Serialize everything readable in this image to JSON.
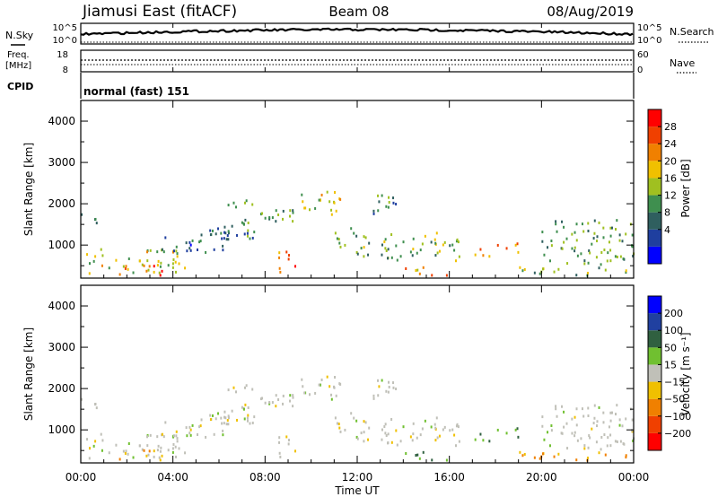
{
  "header": {
    "title": "Jiamusi East (fitACF)",
    "beam": "Beam 08",
    "date": "08/Aug/2019"
  },
  "noise_panel": {
    "left_label": "N.Sky",
    "right_label": "N.Search",
    "tick_top": "10^5",
    "tick_bottom": "10^0",
    "right_tick_top": "10^5",
    "right_tick_bottom": "10^0"
  },
  "freq_panel": {
    "left_label_1": "Freq.",
    "left_label_2": "[MHz]",
    "left_tick_top": "18",
    "left_tick_bottom": "8",
    "right_label": "Nave",
    "right_tick_top": "60",
    "right_tick_bottom": "0"
  },
  "cpid": {
    "label": "CPID",
    "value": "normal (fast) 151"
  },
  "power_panel": {
    "ylabel": "Slant Range [km]",
    "yticks": [
      "4000",
      "3000",
      "2000",
      "1000"
    ],
    "colorbar_label": "Power [dB]",
    "colorbar_ticks": [
      "28",
      "24",
      "20",
      "16",
      "12",
      "8",
      "4"
    ],
    "colors": [
      "#0000ff",
      "#1f3f9f",
      "#2f5f5f",
      "#3f8f4f",
      "#a0c020",
      "#f0c000",
      "#f08000",
      "#f04000",
      "#ff0000"
    ]
  },
  "velocity_panel": {
    "ylabel": "Slant Range [km]",
    "yticks": [
      "4000",
      "3000",
      "2000",
      "1000"
    ],
    "colorbar_label": "Velocity [m s⁻¹]",
    "colorbar_ticks": [
      "200",
      "100",
      "50",
      "15",
      "−15",
      "−50",
      "−100",
      "−200"
    ],
    "colors": [
      "#0000ff",
      "#2040a0",
      "#306040",
      "#70c030",
      "#c0c0b8",
      "#f0c000",
      "#f08000",
      "#f04000",
      "#ff0000"
    ]
  },
  "x_axis": {
    "ticks": [
      "00:00",
      "04:00",
      "08:00",
      "12:00",
      "16:00",
      "20:00",
      "00:00"
    ],
    "label": "Time UT"
  },
  "chart_data": {
    "type": "heatmap",
    "title": "Jiamusi East (fitACF)",
    "xlabel": "Time UT",
    "ylabel": "Slant Range [km]",
    "x_range_hours": [
      0,
      24
    ],
    "y_range_km": [
      200,
      4500
    ],
    "power_colorbar_range_db": [
      0,
      30
    ],
    "velocity_colorbar_range_ms": [
      -250,
      250
    ],
    "regions": [
      {
        "t0": 0.0,
        "t1": 0.8,
        "r0": 1450,
        "r1": 1750,
        "power": 10,
        "velocity": 0
      },
      {
        "t0": 0.0,
        "t1": 4.5,
        "r0": 300,
        "r1": 900,
        "power": 16,
        "velocity": 0
      },
      {
        "t0": 1.5,
        "t1": 3.5,
        "r0": 250,
        "r1": 500,
        "power": 26,
        "velocity": -40
      },
      {
        "t0": 3.5,
        "t1": 6.5,
        "r0": 800,
        "r1": 1400,
        "power": 8,
        "velocity": 0
      },
      {
        "t0": 6.0,
        "t1": 7.5,
        "r0": 1100,
        "r1": 2100,
        "power": 10,
        "velocity": 0
      },
      {
        "t0": 7.0,
        "t1": 9.5,
        "r0": 1500,
        "r1": 1900,
        "power": 12,
        "velocity": 0
      },
      {
        "t0": 8.5,
        "t1": 9.3,
        "r0": 300,
        "r1": 900,
        "power": 22,
        "velocity": 0
      },
      {
        "t0": 9.5,
        "t1": 11.5,
        "r0": 1700,
        "r1": 2300,
        "power": 16,
        "velocity": 0
      },
      {
        "t0": 11.0,
        "t1": 12.5,
        "r0": 700,
        "r1": 1400,
        "power": 12,
        "velocity": 0
      },
      {
        "t0": 12.5,
        "t1": 14.0,
        "r0": 1700,
        "r1": 2200,
        "power": 10,
        "velocity": 0
      },
      {
        "t0": 13.0,
        "t1": 16.5,
        "r0": 600,
        "r1": 1300,
        "power": 14,
        "velocity": 0
      },
      {
        "t0": 14.0,
        "t1": 16.0,
        "r0": 250,
        "r1": 450,
        "power": 20,
        "velocity": 50
      },
      {
        "t0": 17.0,
        "t1": 17.8,
        "r0": 700,
        "r1": 1000,
        "power": 22,
        "velocity": 60
      },
      {
        "t0": 18.0,
        "t1": 19.0,
        "r0": 800,
        "r1": 1100,
        "power": 22,
        "velocity": 40
      },
      {
        "t0": 20.0,
        "t1": 24.0,
        "r0": 500,
        "r1": 1600,
        "power": 12,
        "velocity": 0
      },
      {
        "t0": 19.0,
        "t1": 24.0,
        "r0": 250,
        "r1": 450,
        "power": 14,
        "velocity": -50
      }
    ]
  }
}
